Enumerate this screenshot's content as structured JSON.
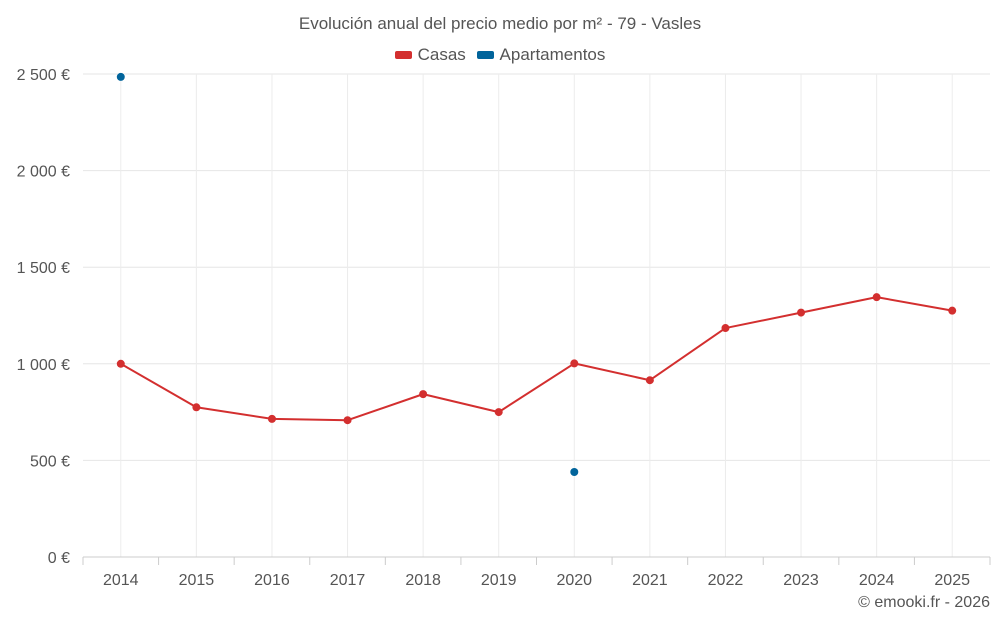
{
  "chart_data": {
    "type": "line",
    "title": "Evolución anual del precio medio por m² - 79 - Vasles",
    "xlabel": "",
    "ylabel": "",
    "categories": [
      "2014",
      "2015",
      "2016",
      "2017",
      "2018",
      "2019",
      "2020",
      "2021",
      "2022",
      "2023",
      "2024",
      "2025"
    ],
    "ylim": [
      0,
      2500
    ],
    "yticks": [
      0,
      500,
      1000,
      1500,
      2000,
      2500
    ],
    "ytick_labels": [
      "0 €",
      "500 €",
      "1 000 €",
      "1 500 €",
      "2 000 €",
      "2 500 €"
    ],
    "grid": true,
    "legend_position": "top-center",
    "series": [
      {
        "name": "Casas",
        "color": "#d32f2f",
        "values": [
          1000,
          775,
          715,
          708,
          843,
          750,
          1002,
          915,
          1185,
          1265,
          1345,
          1275
        ]
      },
      {
        "name": "Apartamentos",
        "color": "#01649b",
        "values": [
          2485,
          null,
          null,
          null,
          null,
          null,
          440,
          null,
          null,
          null,
          null,
          null
        ]
      }
    ]
  },
  "credit": "© emooki.fr - 2026"
}
